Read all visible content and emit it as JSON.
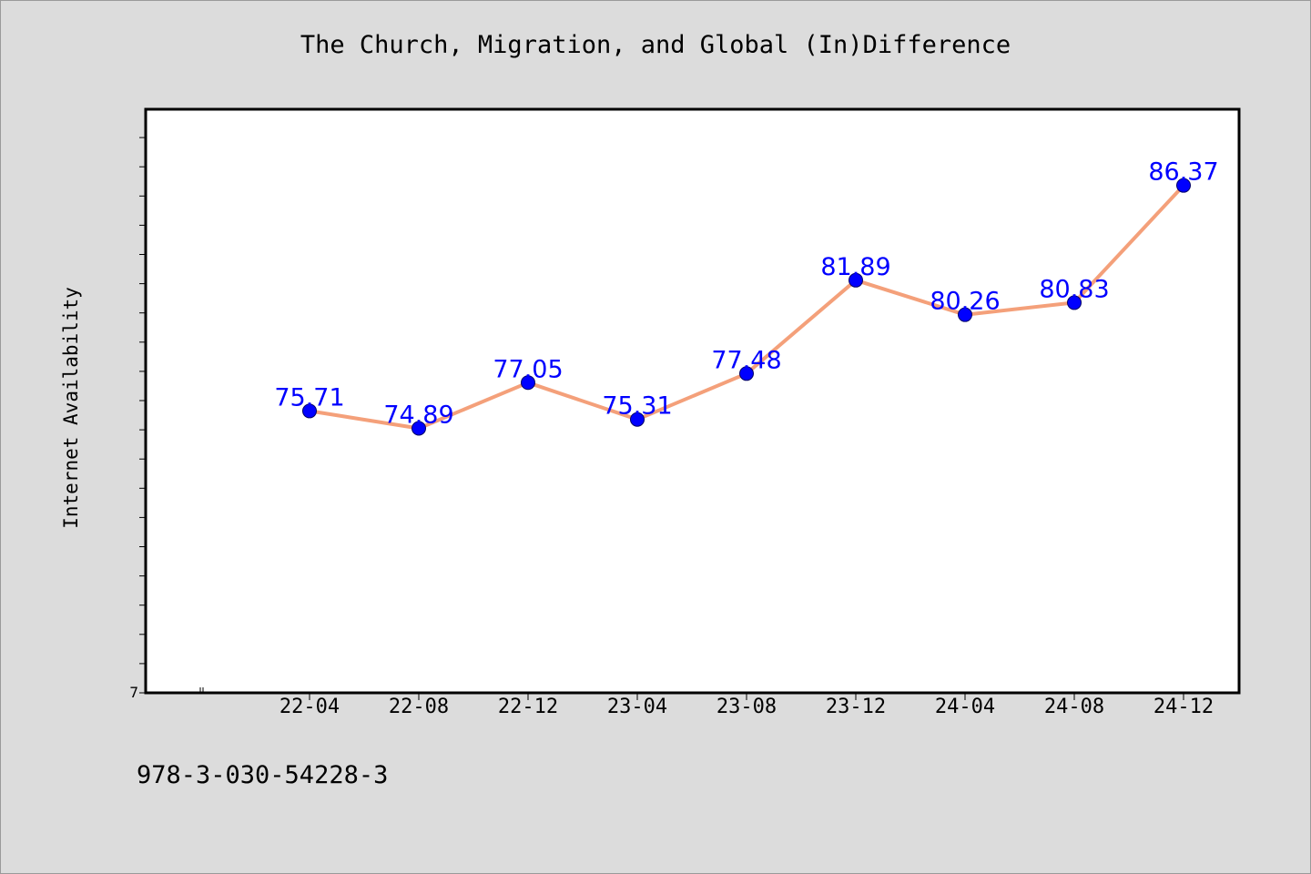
{
  "title": "The Church, Migration, and Global (In)Difference",
  "footer_text": "978-3-030-54228-3",
  "chart_data": {
    "type": "line",
    "title": "The Church, Migration, and Global (In)Difference",
    "xlabel": "",
    "ylabel": "Internet Availability",
    "categories": [
      "22-04",
      "22-08",
      "22-12",
      "23-04",
      "23-08",
      "23-12",
      "24-04",
      "24-08",
      "24-12"
    ],
    "series": [
      {
        "values": [
          75.71,
          74.89,
          77.05,
          75.31,
          77.48,
          81.89,
          80.26,
          80.83,
          86.37
        ],
        "labels": [
          "75.71",
          "74.89",
          "77.05",
          "75.31",
          "77.48",
          "81.89",
          "80.26",
          "80.83",
          "86.37"
        ],
        "line_color": "#f4a07a",
        "marker_color": "#0000ff",
        "label_color": "#0000ff"
      }
    ],
    "ylim": [
      62.39,
      89.97
    ],
    "y_tick_labels": [
      "7"
    ],
    "grid": false,
    "legend": "none"
  }
}
